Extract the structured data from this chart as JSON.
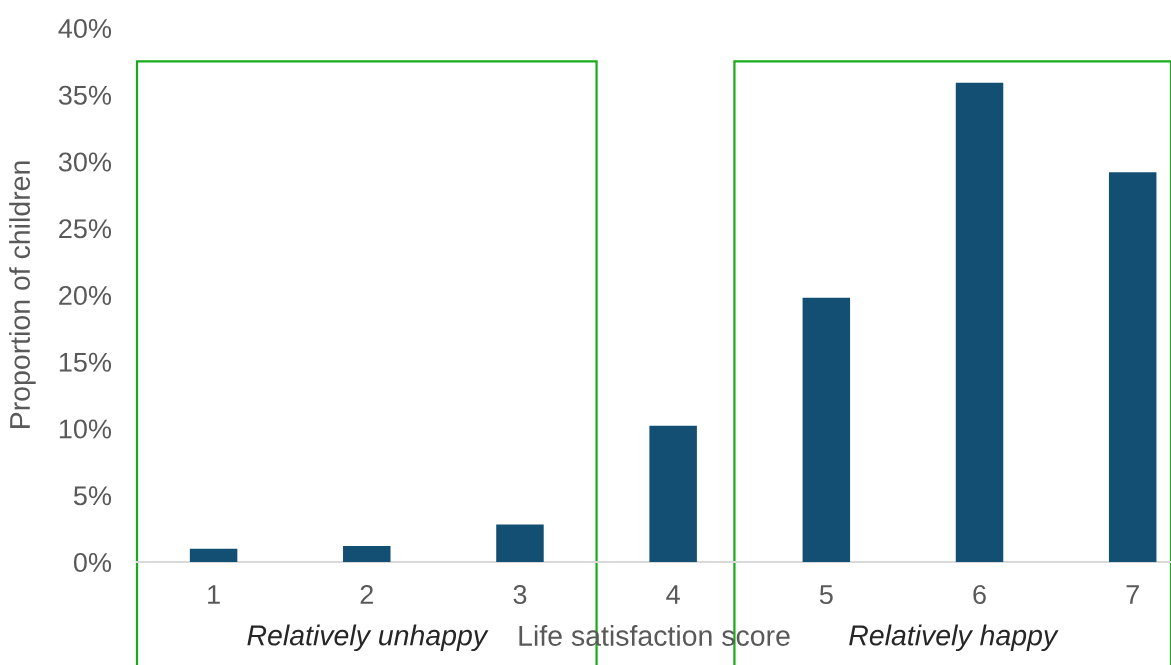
{
  "chart_data": {
    "type": "bar",
    "x": [
      1,
      2,
      3,
      4,
      5,
      6,
      7
    ],
    "values": [
      1.0,
      1.2,
      2.8,
      10.2,
      19.8,
      35.9,
      29.2
    ],
    "color": "#124f73",
    "xlabel": "Life satisfaction score",
    "ylabel": "Proportion of children",
    "xlim": [
      0.5,
      7.25
    ],
    "xticks": [
      1,
      2,
      3,
      4,
      5,
      6,
      7
    ],
    "ylim": [
      0,
      40
    ],
    "yticks": [
      {
        "value": 0,
        "label": "0%"
      },
      {
        "value": 5,
        "label": "5%"
      },
      {
        "value": 10,
        "label": "10%"
      },
      {
        "value": 15,
        "label": "15%"
      },
      {
        "value": 20,
        "label": "20%"
      },
      {
        "value": 25,
        "label": "25%"
      },
      {
        "value": 30,
        "label": "30%"
      },
      {
        "value": 35,
        "label": "35%"
      },
      {
        "value": 40,
        "label": "40%"
      }
    ],
    "grid": false,
    "bands": [
      {
        "axis": "x",
        "from": 0.5,
        "to": 3.5,
        "label": "Relatively unhappy",
        "color": "#1aab1a"
      },
      {
        "axis": "x",
        "from": 4.4,
        "to": 7.25,
        "label": "Relatively happy",
        "color": "#1aab1a"
      }
    ]
  }
}
